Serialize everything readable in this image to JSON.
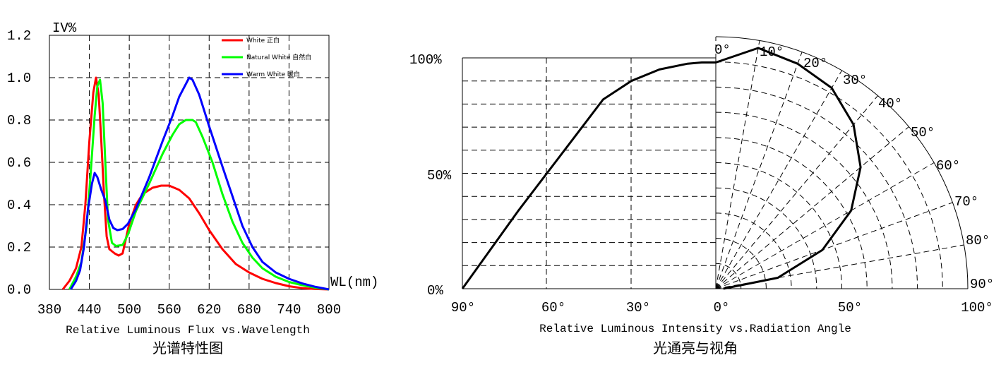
{
  "chart_data": [
    {
      "type": "line",
      "ylabel": "IV%",
      "xlabel": "WL(nm)",
      "caption": "Relative Luminous Flux vs.Wavelength",
      "caption_cn": "光谱特性图",
      "x_ticks": [
        "380",
        "440",
        "500",
        "560",
        "620",
        "680",
        "740",
        "800"
      ],
      "y_ticks": [
        "0.0",
        "0.2",
        "0.4",
        "0.6",
        "0.8",
        "1.0",
        "1.2"
      ],
      "xlim": [
        380,
        800
      ],
      "ylim": [
        0,
        1.2
      ],
      "grid": true,
      "legend_position": "top-right",
      "series": [
        {
          "name": "White 正白",
          "color": "#ff0000",
          "points": [
            [
              400,
              0
            ],
            [
              410,
              0.04
            ],
            [
              420,
              0.1
            ],
            [
              428,
              0.2
            ],
            [
              434,
              0.4
            ],
            [
              440,
              0.7
            ],
            [
              446,
              0.93
            ],
            [
              450,
              1.0
            ],
            [
              454,
              0.92
            ],
            [
              458,
              0.7
            ],
            [
              462,
              0.45
            ],
            [
              466,
              0.25
            ],
            [
              470,
              0.19
            ],
            [
              478,
              0.17
            ],
            [
              484,
              0.16
            ],
            [
              490,
              0.17
            ],
            [
              500,
              0.31
            ],
            [
              510,
              0.4
            ],
            [
              520,
              0.45
            ],
            [
              535,
              0.48
            ],
            [
              548,
              0.49
            ],
            [
              560,
              0.49
            ],
            [
              575,
              0.47
            ],
            [
              590,
              0.43
            ],
            [
              605,
              0.36
            ],
            [
              620,
              0.28
            ],
            [
              640,
              0.19
            ],
            [
              660,
              0.12
            ],
            [
              680,
              0.08
            ],
            [
              700,
              0.05
            ],
            [
              720,
              0.03
            ],
            [
              740,
              0.015
            ],
            [
              760,
              0.006
            ],
            [
              780,
              0.002
            ],
            [
              800,
              0
            ]
          ]
        },
        {
          "name": "Natural White 自然白",
          "color": "#00ff00",
          "points": [
            [
              410,
              0
            ],
            [
              420,
              0.06
            ],
            [
              428,
              0.13
            ],
            [
              436,
              0.3
            ],
            [
              442,
              0.55
            ],
            [
              448,
              0.82
            ],
            [
              452,
              0.96
            ],
            [
              456,
              0.99
            ],
            [
              460,
              0.88
            ],
            [
              464,
              0.6
            ],
            [
              468,
              0.33
            ],
            [
              474,
              0.22
            ],
            [
              480,
              0.205
            ],
            [
              490,
              0.21
            ],
            [
              498,
              0.26
            ],
            [
              510,
              0.37
            ],
            [
              530,
              0.5
            ],
            [
              550,
              0.64
            ],
            [
              565,
              0.73
            ],
            [
              575,
              0.78
            ],
            [
              585,
              0.8
            ],
            [
              595,
              0.8
            ],
            [
              600,
              0.79
            ],
            [
              610,
              0.72
            ],
            [
              625,
              0.6
            ],
            [
              640,
              0.45
            ],
            [
              655,
              0.32
            ],
            [
              670,
              0.22
            ],
            [
              685,
              0.15
            ],
            [
              700,
              0.1
            ],
            [
              720,
              0.06
            ],
            [
              740,
              0.035
            ],
            [
              760,
              0.02
            ],
            [
              780,
              0.008
            ],
            [
              800,
              0
            ]
          ]
        },
        {
          "name": "Warm White 暖白",
          "color": "#0000ff",
          "points": [
            [
              412,
              0
            ],
            [
              420,
              0.04
            ],
            [
              426,
              0.09
            ],
            [
              432,
              0.2
            ],
            [
              438,
              0.38
            ],
            [
              444,
              0.5
            ],
            [
              448,
              0.55
            ],
            [
              452,
              0.53
            ],
            [
              458,
              0.47
            ],
            [
              464,
              0.42
            ],
            [
              470,
              0.33
            ],
            [
              476,
              0.29
            ],
            [
              482,
              0.28
            ],
            [
              490,
              0.285
            ],
            [
              498,
              0.31
            ],
            [
              510,
              0.38
            ],
            [
              530,
              0.53
            ],
            [
              550,
              0.7
            ],
            [
              565,
              0.82
            ],
            [
              575,
              0.91
            ],
            [
              585,
              0.97
            ],
            [
              590,
              1.0
            ],
            [
              595,
              0.99
            ],
            [
              605,
              0.92
            ],
            [
              620,
              0.77
            ],
            [
              640,
              0.58
            ],
            [
              655,
              0.44
            ],
            [
              670,
              0.3
            ],
            [
              685,
              0.2
            ],
            [
              700,
              0.13
            ],
            [
              720,
              0.08
            ],
            [
              740,
              0.05
            ],
            [
              760,
              0.028
            ],
            [
              780,
              0.012
            ],
            [
              800,
              0
            ]
          ]
        }
      ]
    },
    {
      "type": "polar_line",
      "caption": "Relative Luminous Intensity vs.Radiation Angle",
      "caption_cn": "光通亮与视角",
      "bottom_ticks_left": [
        "90°",
        "60°",
        "30°",
        "0°"
      ],
      "bottom_ticks_right": [
        "50°",
        "100°"
      ],
      "y_ticks": [
        "0%",
        "50%",
        "100%"
      ],
      "arc_ticks": [
        "0°",
        "10°",
        "20°",
        "30°",
        "40°",
        "50°",
        "60°",
        "70°",
        "80°",
        "90°"
      ],
      "color": "#000000",
      "left_points_angle_percent": [
        [
          90,
          0
        ],
        [
          80,
          17
        ],
        [
          70,
          34
        ],
        [
          60,
          50
        ],
        [
          50,
          66
        ],
        [
          40,
          82
        ],
        [
          30,
          90
        ],
        [
          20,
          95
        ],
        [
          10,
          97.5
        ],
        [
          5,
          98
        ],
        [
          0,
          98
        ]
      ],
      "right_points_angle_percent": [
        [
          0,
          98
        ],
        [
          10,
          97
        ],
        [
          20,
          95
        ],
        [
          30,
          92
        ],
        [
          40,
          85
        ],
        [
          50,
          75
        ],
        [
          60,
          62
        ],
        [
          70,
          45
        ],
        [
          80,
          25
        ],
        [
          90,
          3
        ]
      ]
    }
  ]
}
